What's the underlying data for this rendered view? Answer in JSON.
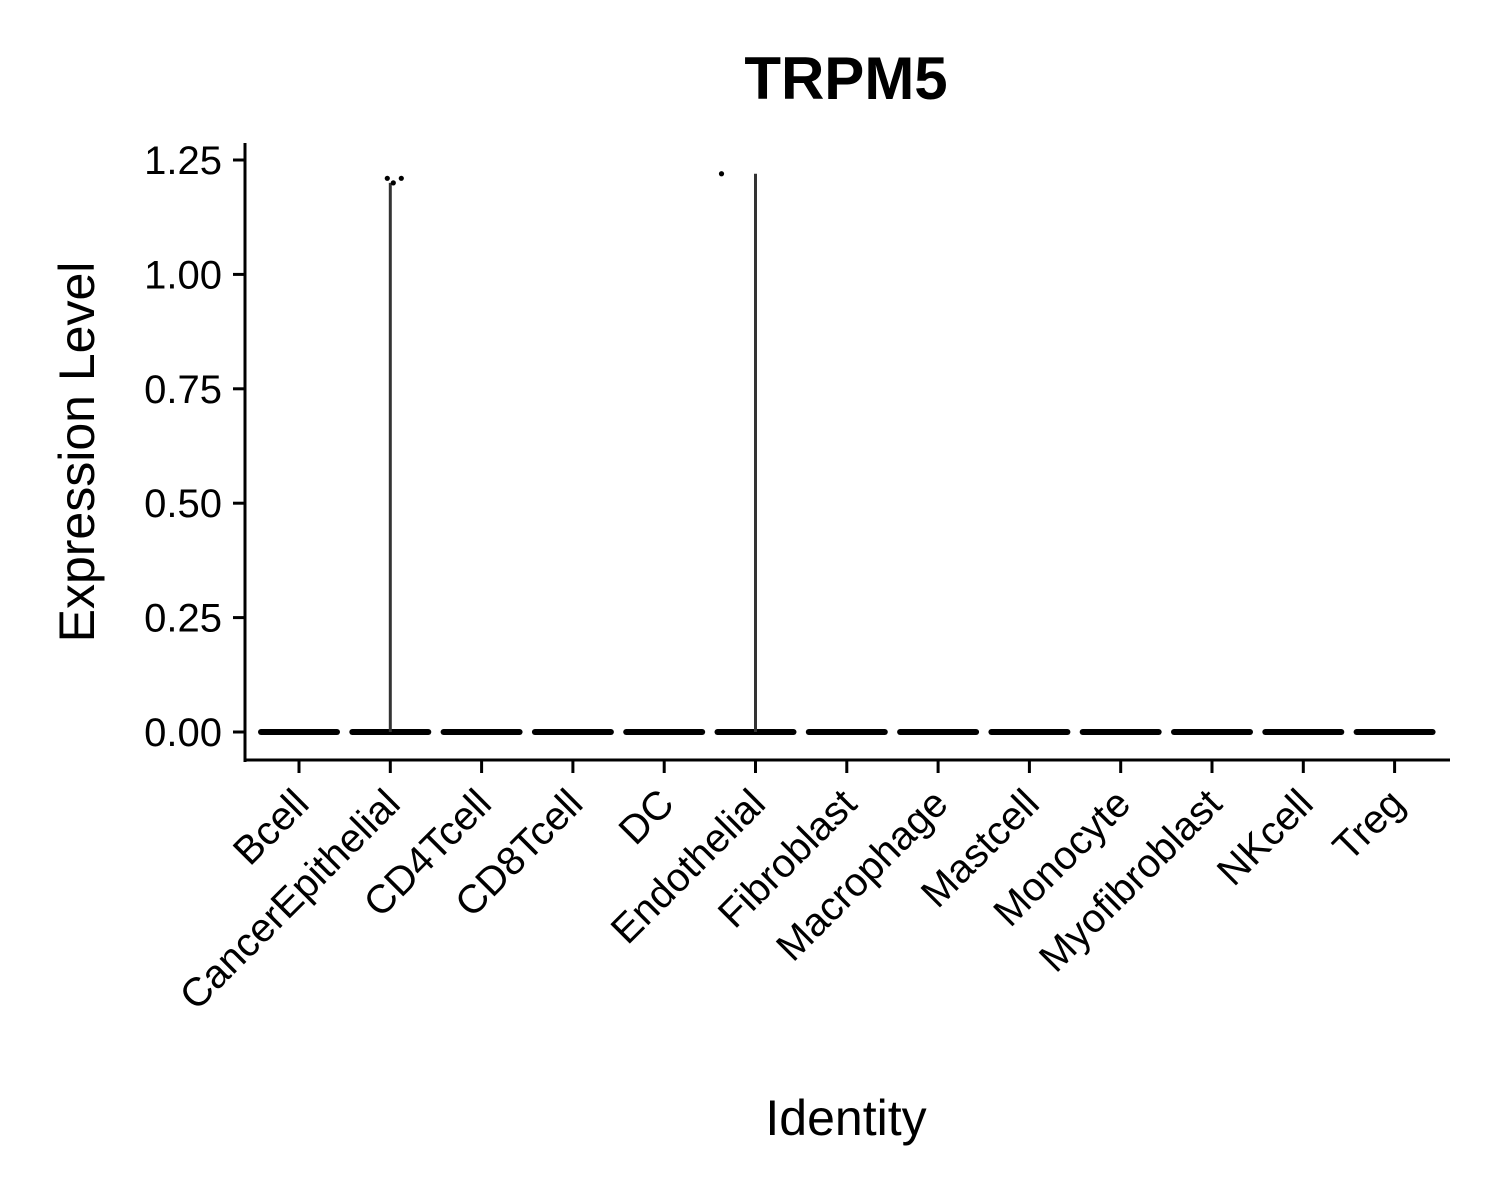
{
  "chart_data": {
    "type": "violin",
    "title": "TRPM5",
    "xlabel": "Identity",
    "ylabel": "Expression Level",
    "ylim": [
      -0.05,
      1.28
    ],
    "yticks": [
      "0.00",
      "0.25",
      "0.50",
      "0.75",
      "1.00",
      "1.25"
    ],
    "categories": [
      "Bcell",
      "CancerEpithelial",
      "CD4Tcell",
      "CD8Tcell",
      "DC",
      "Endothelial",
      "Fibroblast",
      "Macrophage",
      "Mastcell",
      "Monocyte",
      "Myofibroblast",
      "NKcell",
      "Treg"
    ],
    "violin_max": [
      0,
      1.2,
      0,
      0,
      0,
      1.22,
      0,
      0,
      0,
      0,
      0,
      0,
      0
    ],
    "points": [
      {
        "category": "CancerEpithelial",
        "y": 1.21
      },
      {
        "category": "CancerEpithelial",
        "y": 1.2
      },
      {
        "category": "CancerEpithelial",
        "y": 1.21
      },
      {
        "category": "Endothelial",
        "y": 1.22
      }
    ],
    "colors": {
      "axis": "#000000",
      "violin": "#333333",
      "points": "#000000"
    },
    "grid": false,
    "legend": "none"
  }
}
